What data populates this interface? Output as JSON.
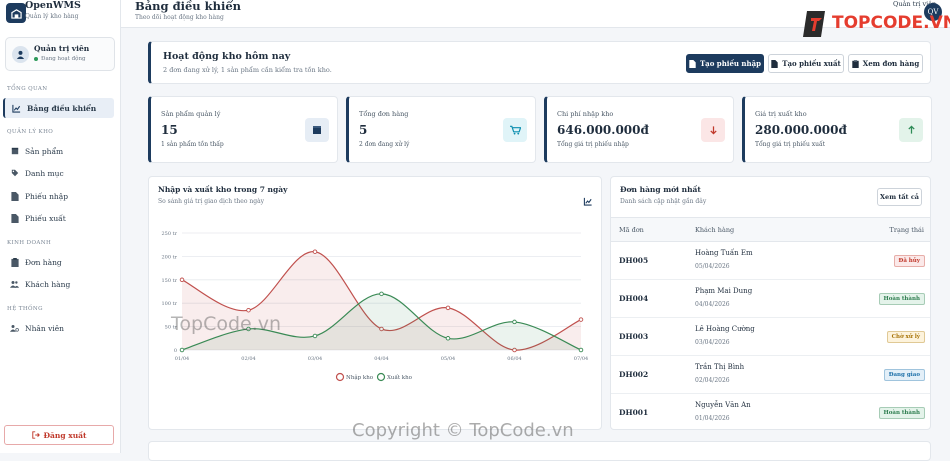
{
  "brand": {
    "name": "OpenWMS",
    "subtitle": "Quản lý kho hàng"
  },
  "user": {
    "name": "Quản trị viên",
    "status": "Đang hoạt động",
    "initials": "QV"
  },
  "sidebar": {
    "sections": [
      {
        "label": "TỔNG QUAN"
      },
      {
        "label": "QUẢN LÝ KHO"
      },
      {
        "label": "KINH DOANH"
      },
      {
        "label": "HỆ THỐNG"
      }
    ],
    "items": [
      {
        "label": "Bảng điều khiển",
        "icon": "chart-icon"
      },
      {
        "label": "Sản phẩm",
        "icon": "box-icon"
      },
      {
        "label": "Danh mục",
        "icon": "tag-icon"
      },
      {
        "label": "Phiếu nhập",
        "icon": "file-icon"
      },
      {
        "label": "Phiếu xuất",
        "icon": "file-icon"
      },
      {
        "label": "Đơn hàng",
        "icon": "clipboard-icon"
      },
      {
        "label": "Khách hàng",
        "icon": "users-icon"
      },
      {
        "label": "Nhân viên",
        "icon": "user-gear-icon"
      }
    ],
    "logout": "Đăng xuất"
  },
  "header": {
    "title": "Bảng điều khiển",
    "subtitle": "Theo dõi hoạt động kho hàng",
    "user_name": "Quản trị viên"
  },
  "activity": {
    "title": "Hoạt động kho hôm nay",
    "subtitle": "2 đơn đang xử lý, 1 sản phẩm cần kiểm tra tồn kho.",
    "buttons": {
      "import": "Tạo phiếu nhập",
      "export": "Tạo phiếu xuất",
      "orders": "Xem đơn hàng"
    }
  },
  "stats": [
    {
      "label": "Sản phẩm quản lý",
      "value": "15",
      "note": "1 sản phẩm tồn thấp",
      "icon": "box-icon",
      "color": "#1d3b5e",
      "bg": "#e6edf5"
    },
    {
      "label": "Tổng đơn hàng",
      "value": "5",
      "note": "2 đơn đang xử lý",
      "icon": "cart-icon",
      "color": "#0c8fb0",
      "bg": "#e0f4f8"
    },
    {
      "label": "Chi phí nhập kho",
      "value": "646.000.000đ",
      "note": "Tổng giá trị phiếu nhập",
      "icon": "arrow-down-icon",
      "color": "#c0392b",
      "bg": "#fbe6e6"
    },
    {
      "label": "Giá trị xuất kho",
      "value": "280.000.000đ",
      "note": "Tổng giá trị phiếu xuất",
      "icon": "arrow-up-icon",
      "color": "#2e8b57",
      "bg": "#e3f3ea"
    }
  ],
  "chart_panel": {
    "title": "Nhập và xuất kho trong 7 ngày",
    "subtitle": "So sánh giá trị giao dịch theo ngày"
  },
  "chart_data": {
    "type": "area",
    "categories": [
      "01/04",
      "02/04",
      "03/04",
      "04/04",
      "05/04",
      "06/04",
      "07/04"
    ],
    "series": [
      {
        "name": "Nhập kho",
        "color": "#c0504d",
        "values": [
          150,
          85,
          210,
          45,
          90,
          0,
          65
        ]
      },
      {
        "name": "Xuất kho",
        "color": "#3a8a55",
        "values": [
          0,
          45,
          30,
          120,
          25,
          60,
          0
        ]
      }
    ],
    "yticks": [
      "0",
      "50 tr",
      "100 tr",
      "150 tr",
      "200 tr",
      "250 tr"
    ],
    "ylim": [
      0,
      250
    ],
    "grid": true,
    "legend": "bottom"
  },
  "orders": {
    "title": "Đơn hàng mới nhất",
    "subtitle": "Danh sách cập nhật gần đây",
    "view_all": "Xem tất cả",
    "columns": [
      "Mã đơn",
      "Khách hàng",
      "Trạng thái"
    ],
    "rows": [
      {
        "id": "DH005",
        "customer": "Hoàng Tuấn Em",
        "date": "05/04/2026",
        "status": "Đã hủy",
        "color": "#c0392b",
        "bg": "#fbe9e9"
      },
      {
        "id": "DH004",
        "customer": "Phạm Mai Dung",
        "date": "04/04/2026",
        "status": "Hoàn thành",
        "color": "#2e7d4f",
        "bg": "#e4f3ea"
      },
      {
        "id": "DH003",
        "customer": "Lê Hoàng Cường",
        "date": "03/04/2026",
        "status": "Chờ xử lý",
        "color": "#a8750a",
        "bg": "#fdf3dc"
      },
      {
        "id": "DH002",
        "customer": "Trần Thị Bình",
        "date": "02/04/2026",
        "status": "Đang giao",
        "color": "#1c6fa8",
        "bg": "#e3eff8"
      },
      {
        "id": "DH001",
        "customer": "Nguyễn Văn An",
        "date": "01/04/2026",
        "status": "Hoàn thành",
        "color": "#2e7d4f",
        "bg": "#e4f3ea"
      }
    ]
  },
  "watermarks": {
    "logo": "TOPCODE.VN",
    "mid": "TopCode.vn",
    "copyright": "Copyright © TopCode.vn"
  }
}
